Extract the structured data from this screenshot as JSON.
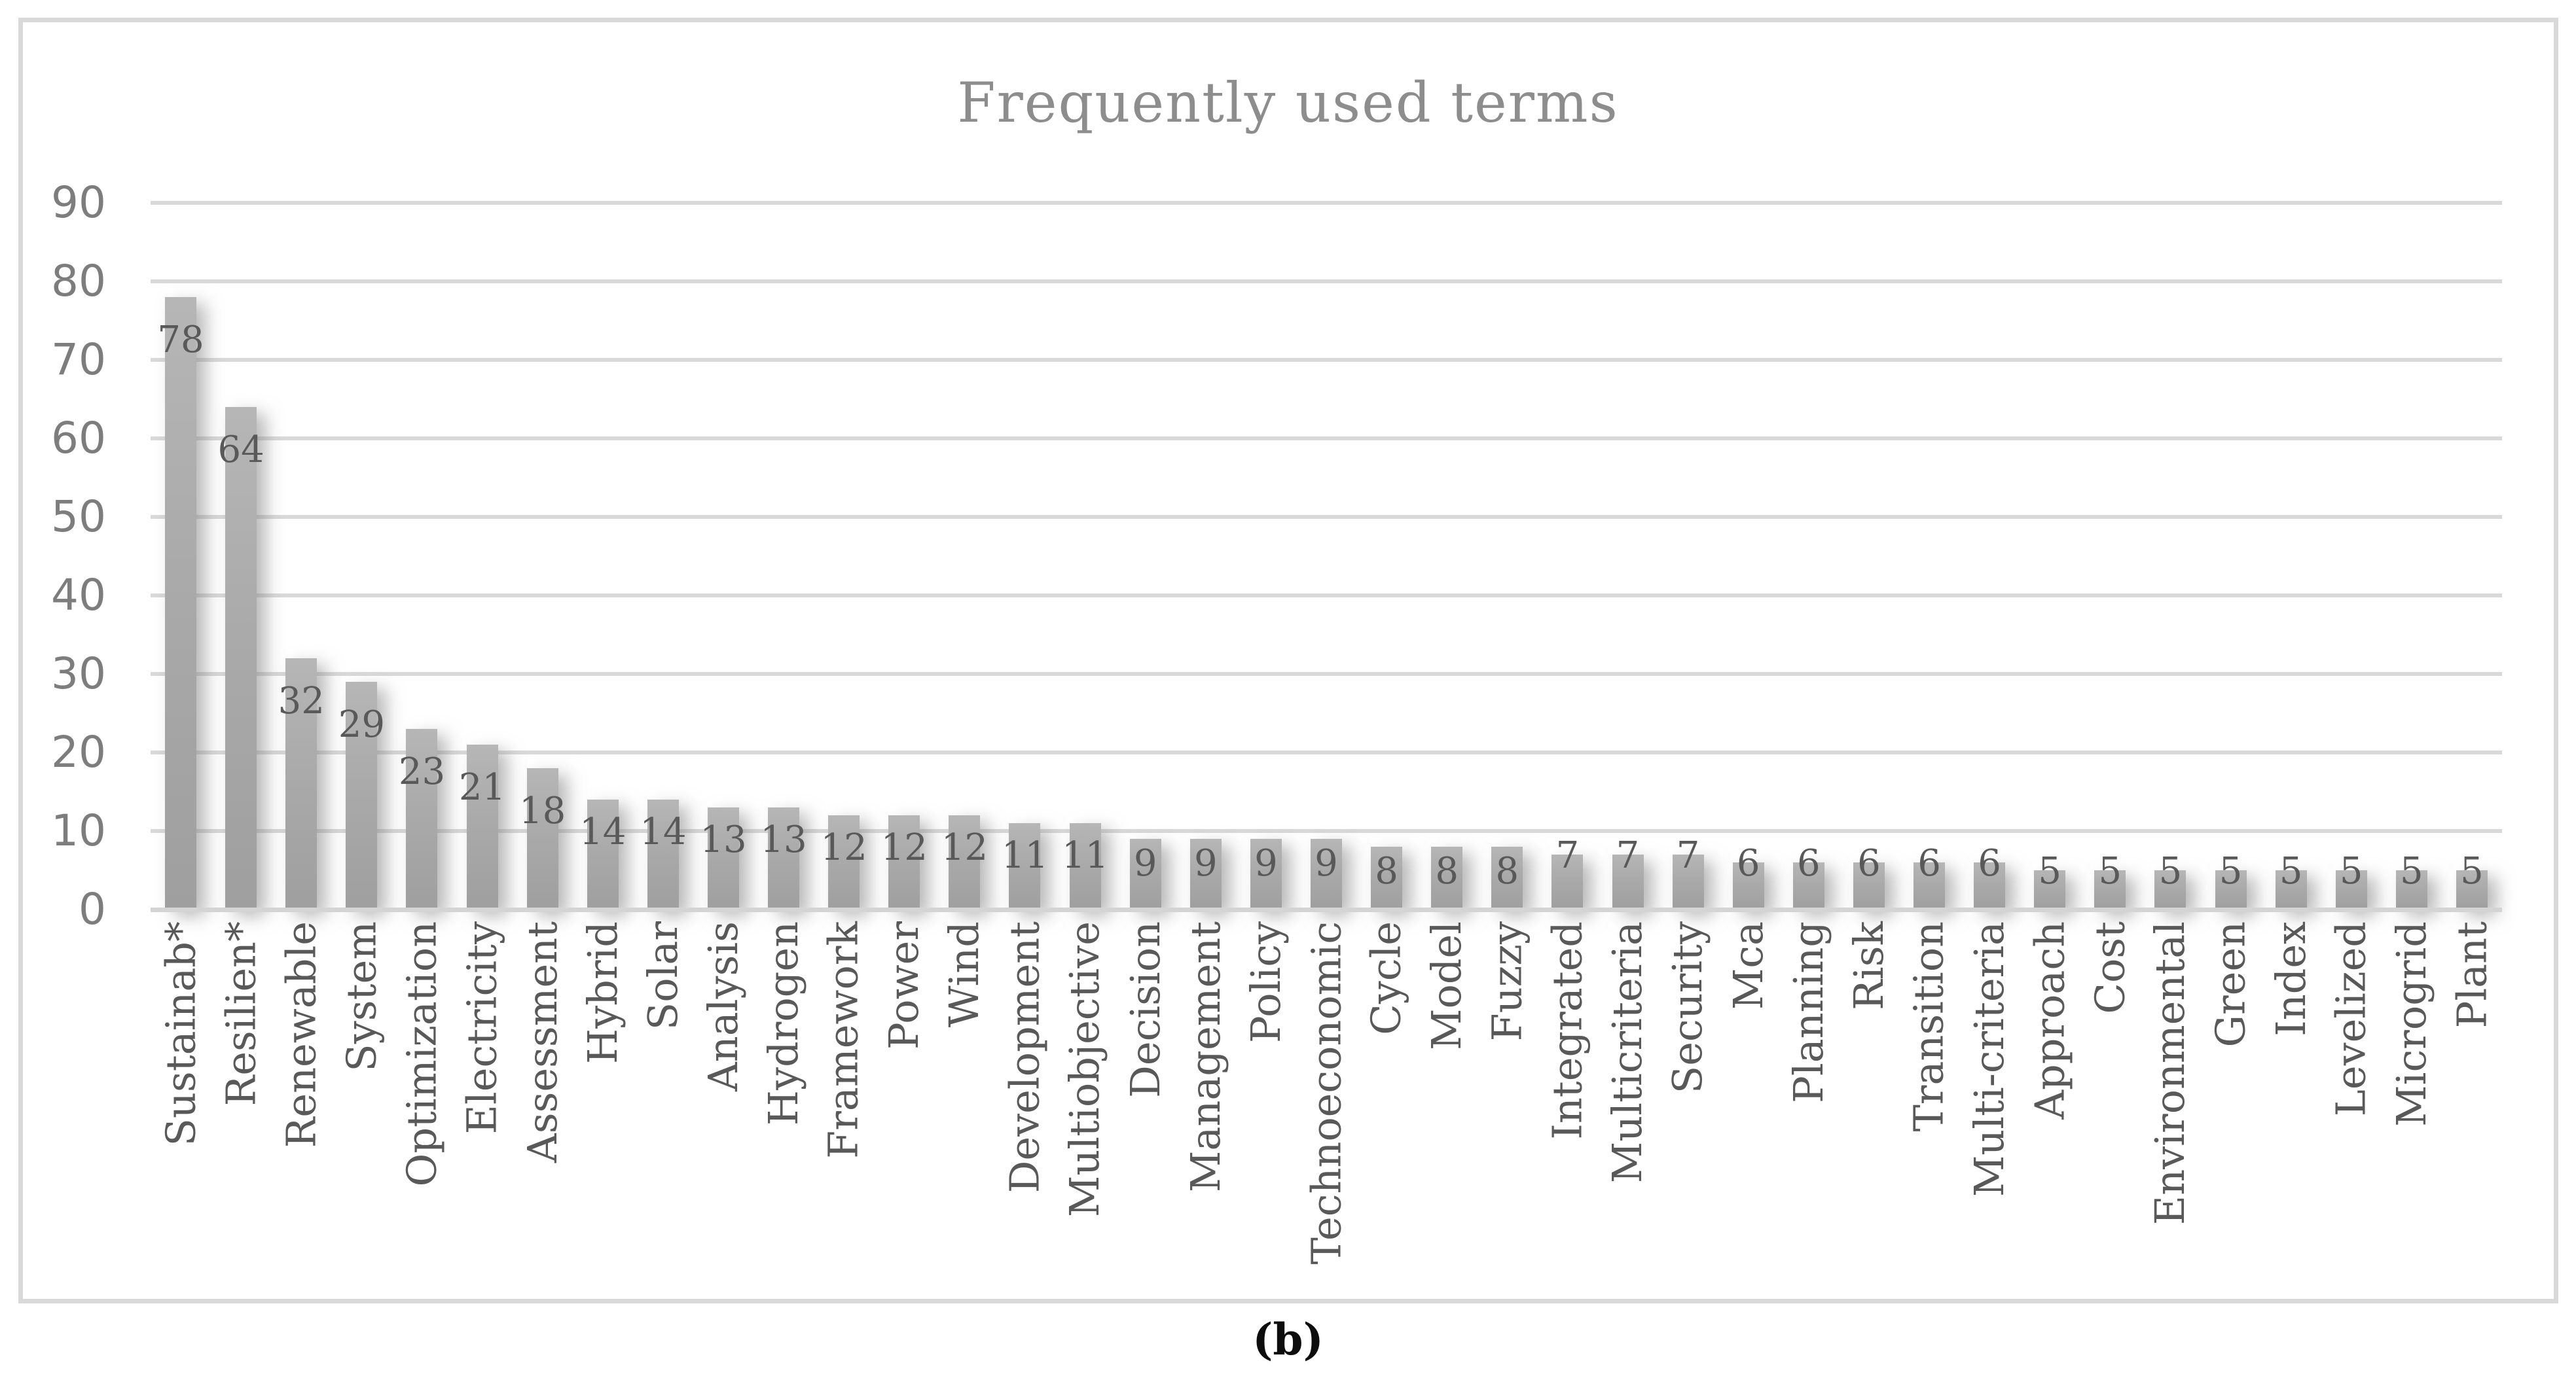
{
  "title": "Frequently used terms",
  "caption": "(b)",
  "chart_data": {
    "type": "bar",
    "title": "Frequently used terms",
    "categories": [
      "Sustainab*",
      "Resilien*",
      "Renewable",
      "System",
      "Optimization",
      "Electricity",
      "Assessment",
      "Hybrid",
      "Solar",
      "Analysis",
      "Hydrogen",
      "Framework",
      "Power",
      "Wind",
      "Development",
      "Multiobjective",
      "Decision",
      "Management",
      "Policy",
      "Technoeconomic",
      "Cycle",
      "Model",
      "Fuzzy",
      "Integrated",
      "Multicriteria",
      "Security",
      "Mca",
      "Planning",
      "Risk",
      "Transition",
      "Multi-criteria",
      "Approach",
      "Cost",
      "Environmental",
      "Green",
      "Index",
      "Levelized",
      "Microgrid",
      "Plant"
    ],
    "values": [
      78,
      64,
      32,
      29,
      23,
      21,
      18,
      14,
      14,
      13,
      13,
      12,
      12,
      12,
      11,
      11,
      9,
      9,
      9,
      9,
      8,
      8,
      8,
      7,
      7,
      7,
      6,
      6,
      6,
      6,
      6,
      5,
      5,
      5,
      5,
      5,
      5,
      5,
      5
    ],
    "xlabel": "",
    "ylabel": "",
    "ylim": [
      0,
      90
    ],
    "yticks": [
      0,
      10,
      20,
      30,
      40,
      50,
      60,
      70,
      80,
      90
    ],
    "grid": "horizontal",
    "legend_position": "none",
    "data_labels": "shown",
    "colors": {
      "bar": "#a9a9a9",
      "gridline": "#d9d9d9",
      "frame_border": "#d9d9d9",
      "title_text": "#8d8d8d",
      "axis_tick_text": "#7d7d7d",
      "category_text": "#595959",
      "data_label_text": "#595959",
      "caption_text": "#0d0d0d",
      "background": "#ffffff"
    }
  }
}
